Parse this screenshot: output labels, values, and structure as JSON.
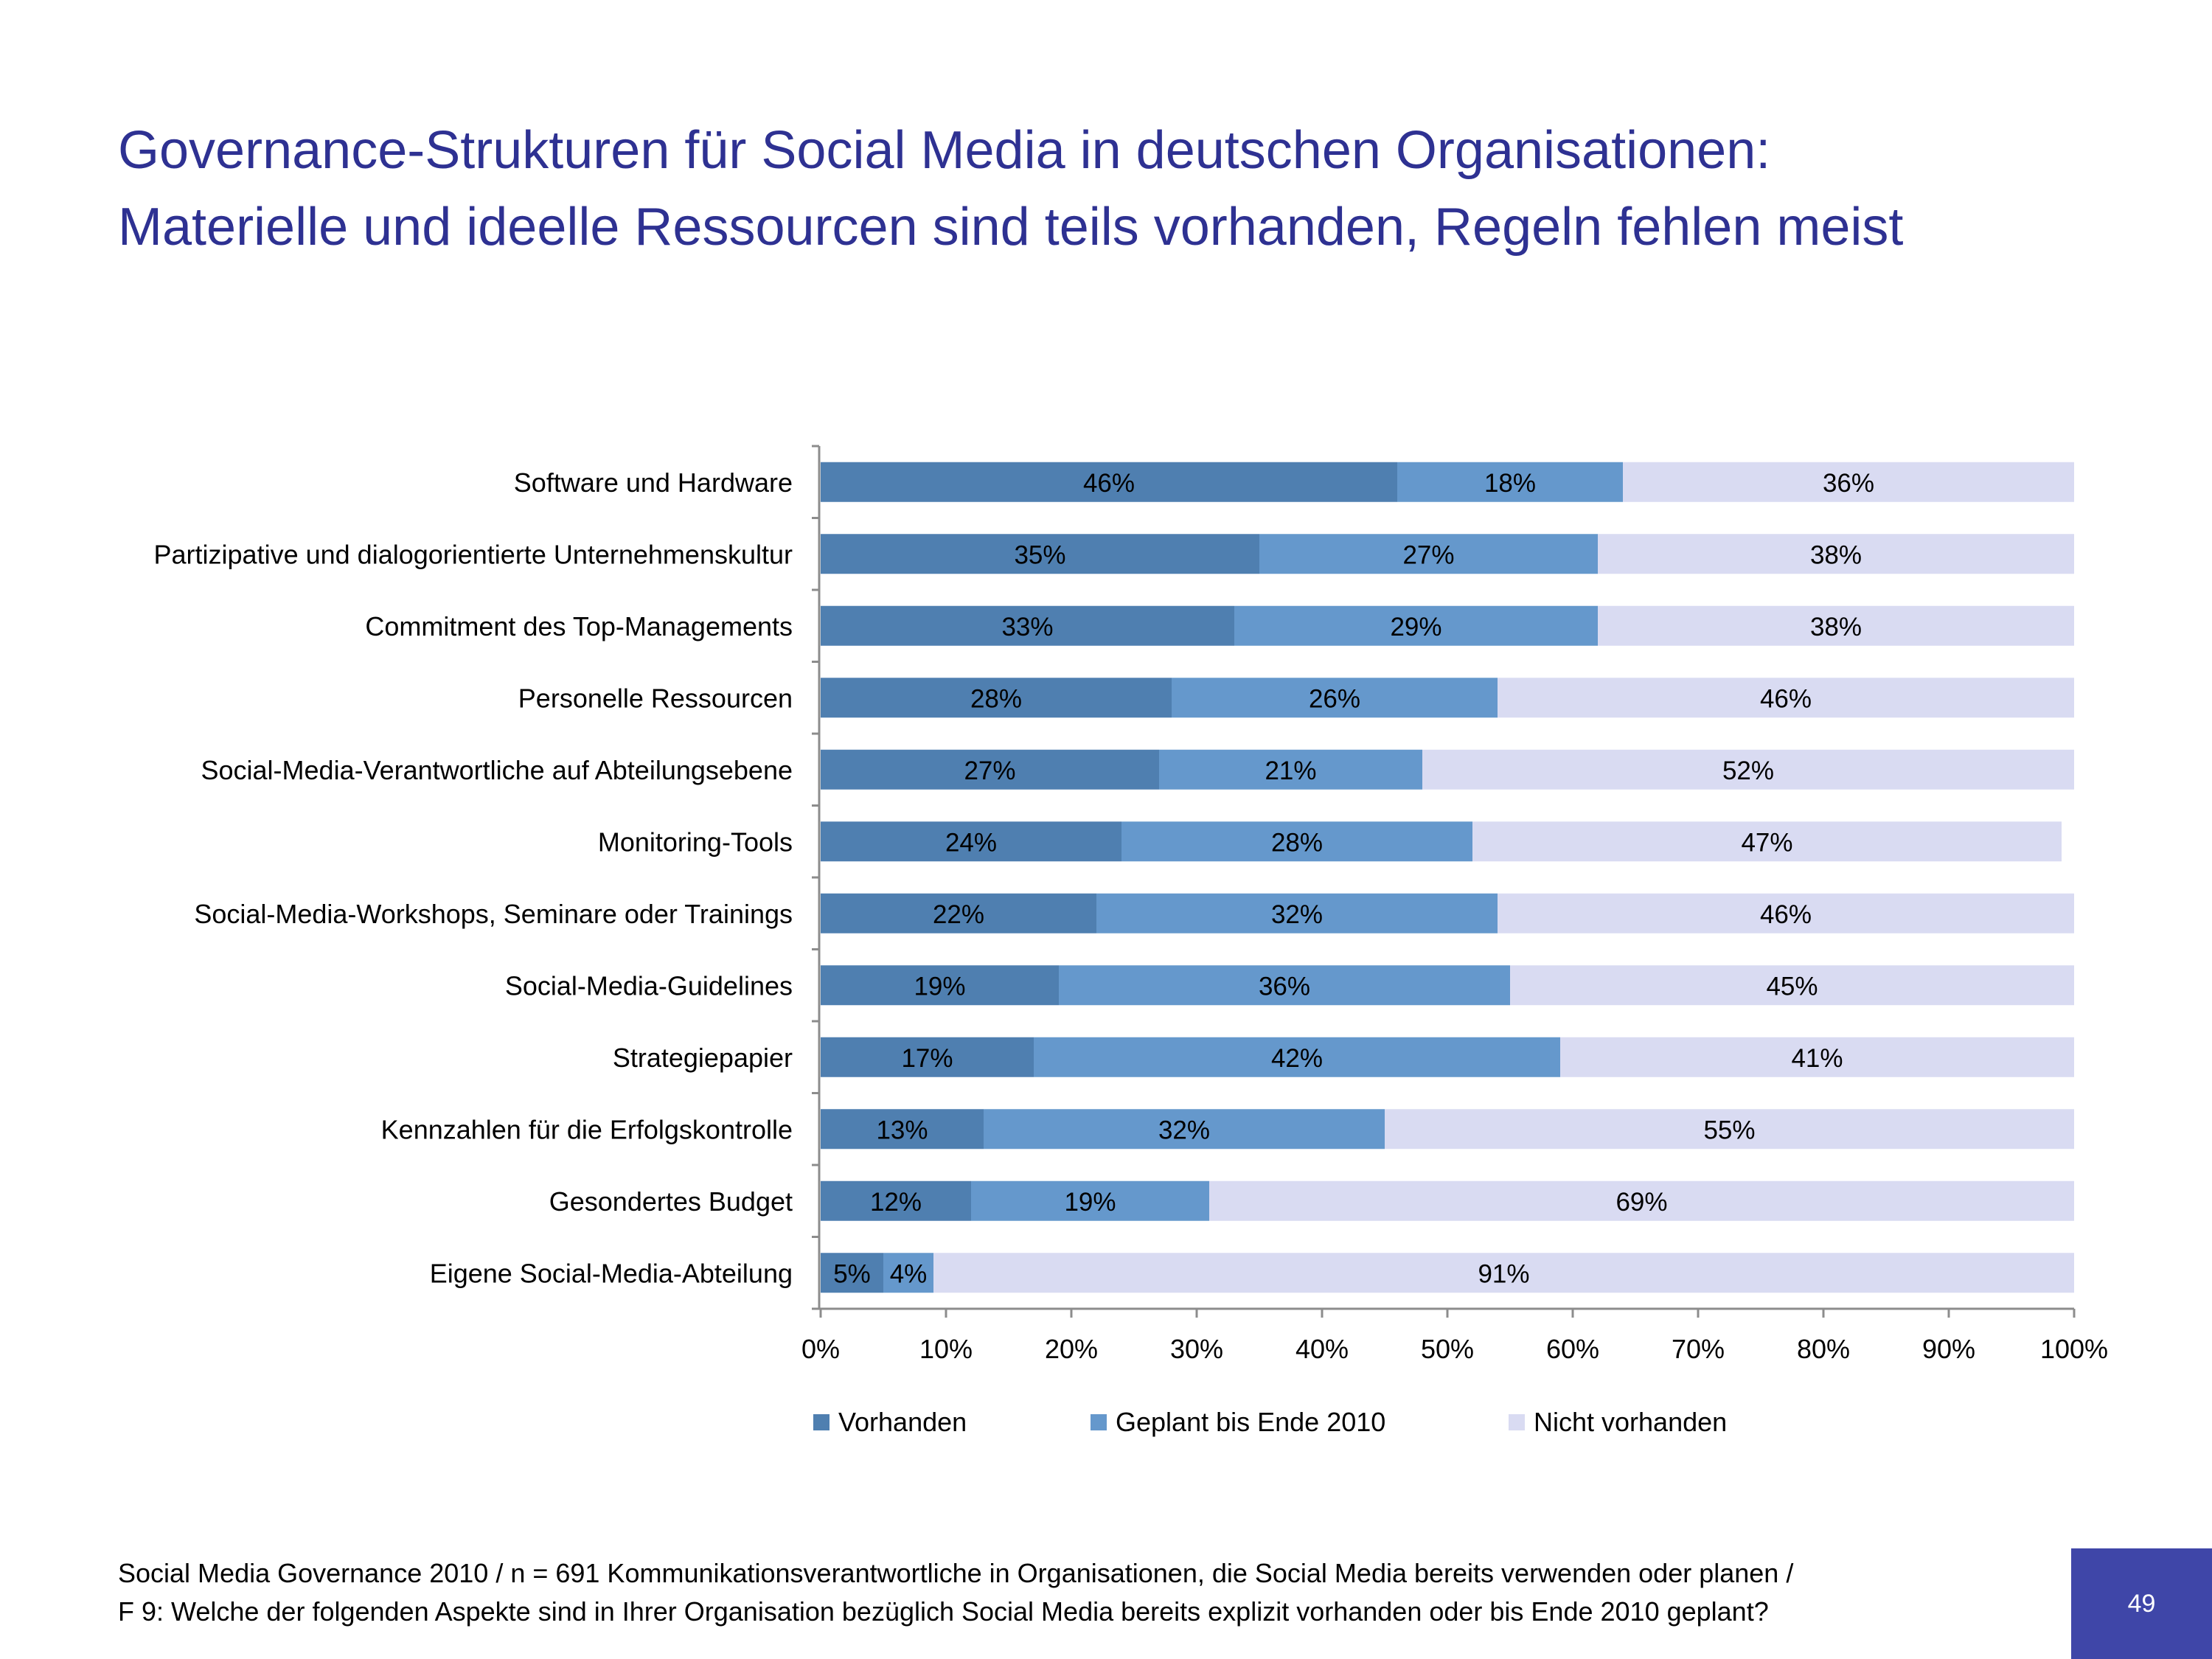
{
  "title": {
    "line1": "Governance-Strukturen für Social Media in deutschen Organisationen:",
    "line2": "Materielle und ideelle Ressourcen sind teils vorhanden, Regeln fehlen meist"
  },
  "chart_data": {
    "type": "bar",
    "orientation": "horizontal",
    "stacked": true,
    "percent_stacked": true,
    "categories": [
      "Software und Hardware",
      "Partizipative und dialogorientierte Unternehmenskultur",
      "Commitment des Top-Managements",
      "Personelle Ressourcen",
      "Social-Media-Verantwortliche auf Abteilungsebene",
      "Monitoring-Tools",
      "Social-Media-Workshops, Seminare oder Trainings",
      "Social-Media-Guidelines",
      "Strategiepapier",
      "Kennzahlen für die Erfolgskontrolle",
      "Gesondertes Budget",
      "Eigene Social-Media-Abteilung"
    ],
    "series": [
      {
        "name": "Vorhanden",
        "color": "#4f7fb0",
        "values": [
          46,
          35,
          33,
          28,
          27,
          24,
          22,
          19,
          17,
          13,
          12,
          5
        ]
      },
      {
        "name": "Geplant bis Ende 2010",
        "color": "#6598cc",
        "values": [
          18,
          27,
          29,
          26,
          21,
          28,
          32,
          36,
          42,
          32,
          19,
          4
        ]
      },
      {
        "name": "Nicht vorhanden",
        "color": "#d9dbf2",
        "values": [
          36,
          38,
          38,
          46,
          52,
          47,
          46,
          45,
          41,
          55,
          69,
          91
        ]
      }
    ],
    "x_ticks": [
      "0%",
      "10%",
      "20%",
      "30%",
      "40%",
      "50%",
      "60%",
      "70%",
      "80%",
      "90%",
      "100%"
    ],
    "xlim": [
      0,
      100
    ],
    "grid": false,
    "legend_position": "bottom"
  },
  "footer": {
    "line1": "Social Media Governance 2010 /  n = 691 Kommunikationsverantwortliche in Organisationen, die Social Media bereits verwenden oder planen /",
    "line2": "F 9: Welche der folgenden Aspekte sind in Ihrer Organisation bezüglich Social Media bereits explizit vorhanden oder bis Ende 2010 geplant?"
  },
  "page_number": "49"
}
